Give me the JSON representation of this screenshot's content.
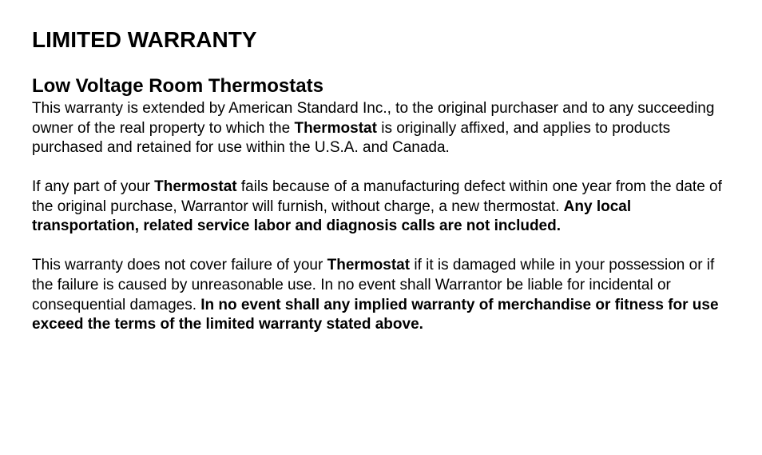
{
  "typography": {
    "title_fontsize": 28,
    "subtitle_fontsize": 24,
    "body_fontsize": 19,
    "line_height": 1.3,
    "font_family": "Arial, Helvetica, sans-serif",
    "text_color": "#000000",
    "background_color": "#ffffff"
  },
  "title": "LIMITED WARRANTY",
  "subtitle": "Low Voltage Room Thermostats",
  "p1": {
    "s1": "This warranty is extended by American Standard Inc., to the original purchaser and to any succeeding owner of the real property to which the ",
    "b1": "Thermostat",
    "s2": " is originally affixed, and applies to products purchased and retained for use within the U.S.A. and Canada."
  },
  "p2": {
    "s1": "If any part of your ",
    "b1": "Thermostat",
    "s2": " fails because of a manufacturing defect within one year from the date of the original purchase, Warrantor will furnish, without charge, a new thermostat. ",
    "b2": "Any local transportation, related service labor and diagnosis calls are not included."
  },
  "p3": {
    "s1": "This warranty does not cover failure of your ",
    "b1": "Thermostat",
    "s2": " if it is damaged while in your posses­sion or if the failure is caused by unreasonable use. In no event shall Warrantor be liable for incidental or consequential damages. ",
    "b2": "In no event shall any implied warranty of merchandise or fitness for use exceed the terms of the limited warranty stated above."
  }
}
